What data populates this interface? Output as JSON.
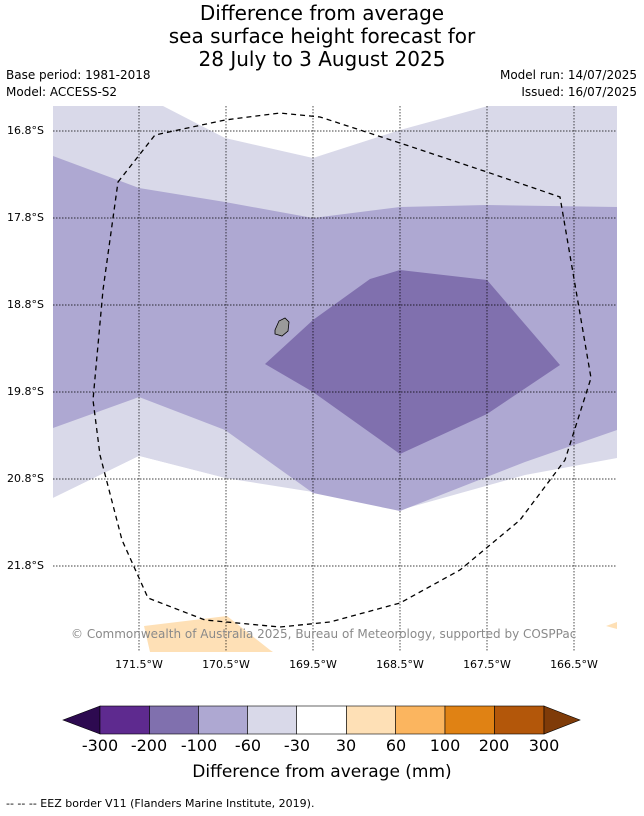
{
  "title": {
    "line1": "Difference from average",
    "line2": "sea surface height forecast for",
    "line3": "28 July to 3 August 2025"
  },
  "meta": {
    "base_period": "Base period: 1981-2018",
    "model": "Model: ACCESS-S2",
    "model_run": "Model run: 14/07/2025",
    "issued": "Issued: 16/07/2025"
  },
  "map": {
    "lat_labels": [
      "16.8°S",
      "17.8°S",
      "18.8°S",
      "19.8°S",
      "20.8°S",
      "21.8°S"
    ],
    "lon_labels": [
      "171.5°W",
      "170.5°W",
      "169.5°W",
      "168.5°W",
      "167.5°W",
      "166.5°W"
    ],
    "copyright": "© Commonwealth of Australia 2025, Bureau of Meteorology, supported by COSPPac"
  },
  "colorbar": {
    "tick_labels": [
      "-300",
      "-200",
      "-100",
      "-60",
      "-30",
      "30",
      "60",
      "100",
      "200",
      "300"
    ],
    "colors": [
      "#2d0a50",
      "#5e2a8f",
      "#8070ae",
      "#aea8d2",
      "#d9d9e9",
      "#ffffff",
      "#fee0b6",
      "#fbb55f",
      "#e08214",
      "#b3570a",
      "#7f3b08"
    ],
    "title": "Difference from average (mm)"
  },
  "legend": {
    "eez": "-- -- -- EEZ border V11 (Flanders Marine Institute, 2019)."
  }
}
